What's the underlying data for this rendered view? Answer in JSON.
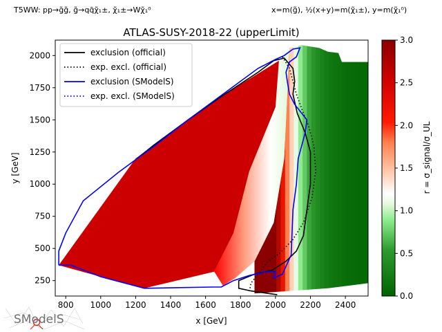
{
  "header": {
    "left": "T5WW: pp→g̃g̃, g̃→qq̄χ̃₁±, χ̃₁±→Wχ̃₁⁰",
    "right": "x=m(g̃), ½(x+y)=m(χ̃₁±), y=m(χ̃₁⁰)"
  },
  "logo": {
    "text": "SModelS"
  },
  "colors": {
    "official": "#000000",
    "smodels": "#0000ff",
    "colormap": [
      "#006400",
      "#90ee90",
      "#ffffff",
      "#ff6347",
      "#ff0000",
      "#8b0000"
    ]
  },
  "chart_data": {
    "type": "heatmap",
    "title": "ATLAS-SUSY-2018-22 (upperLimit)",
    "xlabel": "x [GeV]",
    "ylabel": "y [GeV]",
    "colorbar_label": "r = σ_signal/σ_UL",
    "xlim": [
      740,
      2530
    ],
    "ylim": [
      130,
      2120
    ],
    "clim": [
      0,
      3
    ],
    "xticks": [
      800,
      1000,
      1200,
      1400,
      1600,
      1800,
      2000,
      2200,
      2400
    ],
    "yticks": [
      250,
      500,
      750,
      1000,
      1250,
      1500,
      1750,
      2000
    ],
    "cbar_ticks": [
      0.0,
      0.5,
      1.0,
      1.5,
      2.0,
      2.5,
      3.0
    ],
    "legend": {
      "placement": "upper-left",
      "entries": [
        {
          "label": "exclusion (official)",
          "color": "#000000",
          "style": "solid"
        },
        {
          "label": "exp. excl. (official)",
          "color": "#000000",
          "style": "dotted"
        },
        {
          "label": "exclusion (SModelS)",
          "color": "#0000ff",
          "style": "solid"
        },
        {
          "label": "exp. excl. (SModelS)",
          "color": "#0000ff",
          "style": "dotted"
        }
      ]
    },
    "r_profile": {
      "x": [
        2000,
        2060,
        2100,
        2140,
        2200,
        2280,
        2400,
        2530
      ],
      "r": [
        3.0,
        1.9,
        1.3,
        0.9,
        0.55,
        0.25,
        0.1,
        0.05
      ]
    },
    "regions": {
      "red_interior": [
        [
          760,
          370
        ],
        [
          1200,
          1200
        ],
        [
          1650,
          1650
        ],
        [
          2020,
          1960
        ],
        [
          2000,
          1600
        ],
        [
          1850,
          1100
        ],
        [
          1760,
          620
        ],
        [
          1650,
          320
        ],
        [
          1250,
          190
        ],
        [
          1000,
          280
        ]
      ],
      "white_band": [
        [
          2020,
          1970
        ],
        [
          2080,
          2050
        ],
        [
          2050,
          1200
        ],
        [
          1990,
          700
        ],
        [
          1880,
          400
        ],
        [
          1770,
          270
        ],
        [
          1700,
          210
        ],
        [
          1650,
          320
        ],
        [
          1760,
          620
        ],
        [
          1850,
          1100
        ],
        [
          2000,
          1600
        ]
      ],
      "green_grid": [
        [
          2080,
          2060
        ],
        [
          2150,
          2080
        ],
        [
          2250,
          2060
        ],
        [
          2300,
          2030
        ],
        [
          2360,
          2020
        ],
        [
          2380,
          1950
        ],
        [
          2530,
          1950
        ],
        [
          2530,
          230
        ],
        [
          2300,
          190
        ],
        [
          1880,
          150
        ],
        [
          1700,
          210
        ],
        [
          1770,
          270
        ],
        [
          1880,
          400
        ],
        [
          1990,
          700
        ],
        [
          2050,
          1200
        ]
      ]
    },
    "curves": {
      "official_observed": [
        [
          1200,
          1190
        ],
        [
          1300,
          1300
        ],
        [
          1500,
          1500
        ],
        [
          1700,
          1690
        ],
        [
          1900,
          1870
        ],
        [
          1990,
          1960
        ],
        [
          2050,
          1980
        ],
        [
          2100,
          1900
        ],
        [
          2110,
          1800
        ],
        [
          2100,
          1700
        ],
        [
          2125,
          1550
        ],
        [
          2170,
          1400
        ],
        [
          2200,
          1250
        ],
        [
          2200,
          1000
        ],
        [
          2180,
          800
        ],
        [
          2160,
          600
        ],
        [
          2120,
          480
        ],
        [
          2060,
          400
        ],
        [
          1980,
          330
        ],
        [
          1880,
          300
        ],
        [
          1790,
          250
        ],
        [
          1790,
          190
        ],
        [
          1860,
          170
        ],
        [
          1960,
          150
        ],
        [
          2010,
          140
        ]
      ],
      "official_expected": [
        [
          2040,
          1990
        ],
        [
          2080,
          1900
        ],
        [
          2120,
          1700
        ],
        [
          2160,
          1550
        ],
        [
          2190,
          1450
        ],
        [
          2220,
          1300
        ],
        [
          2230,
          1100
        ],
        [
          2210,
          900
        ],
        [
          2160,
          700
        ],
        [
          2100,
          570
        ],
        [
          2030,
          470
        ],
        [
          1950,
          390
        ],
        [
          1900,
          300
        ],
        [
          1860,
          230
        ],
        [
          1850,
          160
        ]
      ],
      "smodels_observed": [
        [
          760,
          370
        ],
        [
          830,
          370
        ],
        [
          1000,
          280
        ],
        [
          1250,
          190
        ],
        [
          1640,
          200
        ],
        [
          1690,
          200
        ],
        [
          1760,
          250
        ],
        [
          1850,
          290
        ],
        [
          1950,
          320
        ],
        [
          2000,
          320
        ],
        [
          1990,
          270
        ],
        [
          2040,
          300
        ],
        [
          2090,
          450
        ],
        [
          2100,
          800
        ],
        [
          2120,
          1000
        ],
        [
          2130,
          1200
        ],
        [
          2170,
          1400
        ],
        [
          2180,
          1500
        ],
        [
          2110,
          1620
        ],
        [
          2080,
          1700
        ],
        [
          2070,
          1780
        ],
        [
          2060,
          1870
        ],
        [
          2080,
          1950
        ],
        [
          2120,
          1990
        ],
        [
          2140,
          2060
        ],
        [
          2100,
          2050
        ],
        [
          2050,
          2000
        ],
        [
          2000,
          1970
        ],
        [
          1900,
          1900
        ],
        [
          1700,
          1700
        ],
        [
          1500,
          1500
        ],
        [
          1300,
          1290
        ],
        [
          1100,
          1090
        ],
        [
          900,
          870
        ],
        [
          800,
          620
        ],
        [
          760,
          480
        ],
        [
          760,
          370
        ]
      ],
      "smodels_expected": []
    }
  }
}
